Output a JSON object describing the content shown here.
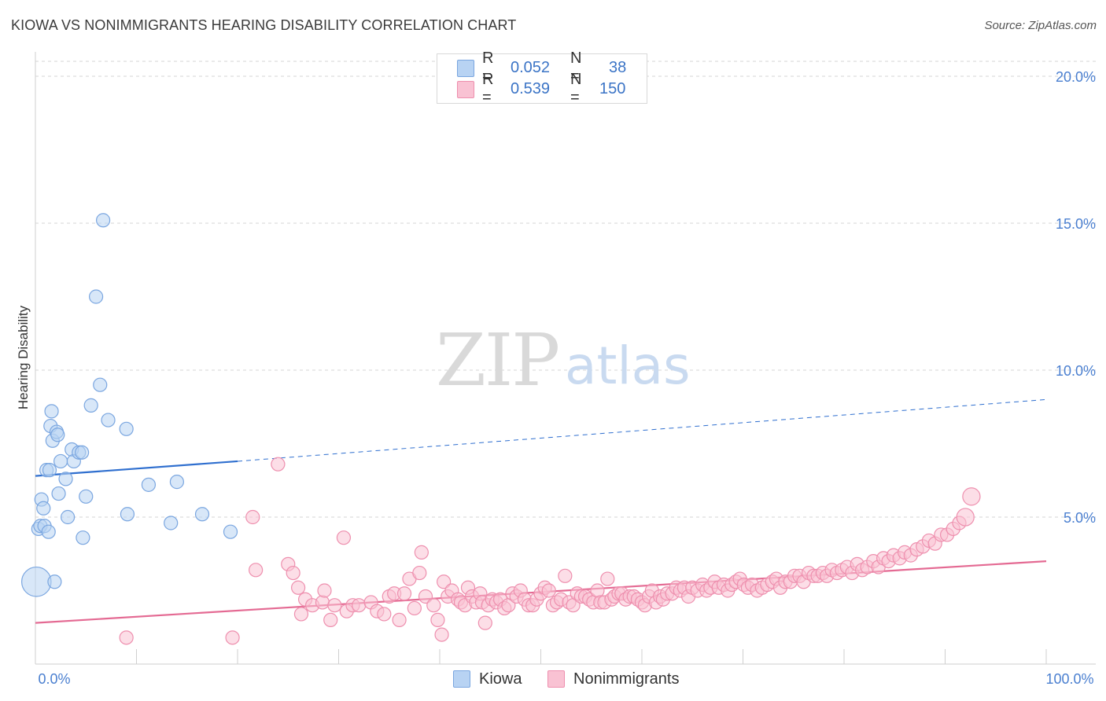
{
  "title": "KIOWA VS NONIMMIGRANTS HEARING DISABILITY CORRELATION CHART",
  "source": "Source: ZipAtlas.com",
  "watermark": {
    "zip": "ZIP",
    "atlas": "atlas"
  },
  "legend_top": {
    "rows": [
      {
        "r_label": "R =",
        "r_value": "0.052",
        "n_label": "N =",
        "n_value": "38"
      },
      {
        "r_label": "R =",
        "r_value": "0.539",
        "n_label": "N =",
        "n_value": "150"
      }
    ]
  },
  "legend_bottom": {
    "items": [
      "Kiowa",
      "Nonimmigrants"
    ]
  },
  "colors": {
    "kiowa_fill": "#b8d3f3",
    "kiowa_stroke": "#7aa6e0",
    "kiowa_line": "#2f6fcf",
    "non_fill": "#f9c2d3",
    "non_stroke": "#ee8fae",
    "non_line": "#e46a93",
    "tick": "#4a7fd0",
    "grid": "#d6d6d6"
  },
  "chart_data": {
    "type": "scatter",
    "title": "KIOWA VS NONIMMIGRANTS HEARING DISABILITY CORRELATION CHART",
    "xlabel": "",
    "ylabel": "Hearing Disability",
    "xlim": [
      0,
      100
    ],
    "ylim": [
      0,
      20
    ],
    "x_ticks": [
      "0.0%",
      "100.0%"
    ],
    "y_ticks": [
      {
        "value": 5,
        "label": "5.0%"
      },
      {
        "value": 10,
        "label": "10.0%"
      },
      {
        "value": 15,
        "label": "15.0%"
      },
      {
        "value": 20,
        "label": "20.0%"
      }
    ],
    "series": [
      {
        "name": "Kiowa",
        "R": 0.052,
        "N": 38,
        "trend": {
          "x0": 0,
          "y0": 6.4,
          "x1": 20,
          "y1": 6.9,
          "x_dash_end": 100,
          "y_dash_end": 9.0
        },
        "points": [
          [
            0.1,
            2.8,
            2.2
          ],
          [
            0.3,
            4.6,
            1
          ],
          [
            0.5,
            4.7,
            1
          ],
          [
            0.6,
            5.6,
            1
          ],
          [
            0.8,
            5.3,
            1
          ],
          [
            0.9,
            4.7,
            1
          ],
          [
            1.1,
            6.6,
            1
          ],
          [
            1.3,
            4.5,
            1
          ],
          [
            1.4,
            6.6,
            1
          ],
          [
            1.5,
            8.1,
            1
          ],
          [
            1.6,
            8.6,
            1
          ],
          [
            1.7,
            7.6,
            1
          ],
          [
            1.9,
            2.8,
            1
          ],
          [
            2.1,
            7.9,
            1
          ],
          [
            2.2,
            7.8,
            1
          ],
          [
            2.3,
            5.8,
            1
          ],
          [
            2.5,
            6.9,
            1
          ],
          [
            3.0,
            6.3,
            1
          ],
          [
            3.2,
            5.0,
            1
          ],
          [
            3.6,
            7.3,
            1
          ],
          [
            3.8,
            6.9,
            1
          ],
          [
            4.3,
            7.2,
            1
          ],
          [
            4.6,
            7.2,
            1
          ],
          [
            4.7,
            4.3,
            1
          ],
          [
            5.0,
            5.7,
            1
          ],
          [
            5.5,
            8.8,
            1
          ],
          [
            6.0,
            12.5,
            1
          ],
          [
            6.4,
            9.5,
            1
          ],
          [
            6.7,
            15.1,
            1
          ],
          [
            7.2,
            8.3,
            1
          ],
          [
            9.0,
            8.0,
            1
          ],
          [
            9.1,
            5.1,
            1
          ],
          [
            11.2,
            6.1,
            1
          ],
          [
            13.4,
            4.8,
            1
          ],
          [
            14.0,
            6.2,
            1
          ],
          [
            16.5,
            5.1,
            1
          ],
          [
            19.3,
            4.5,
            1
          ]
        ]
      },
      {
        "name": "Nonimmigrants",
        "R": 0.539,
        "N": 150,
        "trend": {
          "x0": 0,
          "y0": 1.4,
          "x1": 100,
          "y1": 3.5
        },
        "points": [
          [
            9.0,
            0.9,
            1
          ],
          [
            19.5,
            0.9,
            1
          ],
          [
            21.5,
            5.0,
            1
          ],
          [
            21.8,
            3.2,
            1
          ],
          [
            24.0,
            6.8,
            1
          ],
          [
            25.0,
            3.4,
            1
          ],
          [
            25.5,
            3.1,
            1
          ],
          [
            26.0,
            2.6,
            1
          ],
          [
            26.3,
            1.7,
            1
          ],
          [
            26.7,
            2.2,
            1
          ],
          [
            27.4,
            2.0,
            1
          ],
          [
            28.4,
            2.1,
            1
          ],
          [
            28.6,
            2.5,
            1
          ],
          [
            29.2,
            1.5,
            1
          ],
          [
            29.6,
            2.0,
            1
          ],
          [
            30.5,
            4.3,
            1
          ],
          [
            30.8,
            1.8,
            1
          ],
          [
            31.4,
            2.0,
            1
          ],
          [
            32.0,
            2.0,
            1
          ],
          [
            33.2,
            2.1,
            1
          ],
          [
            33.8,
            1.8,
            1
          ],
          [
            34.5,
            1.7,
            1
          ],
          [
            35.0,
            2.3,
            1
          ],
          [
            35.5,
            2.4,
            1
          ],
          [
            36.0,
            1.5,
            1
          ],
          [
            36.5,
            2.4,
            1
          ],
          [
            37.0,
            2.9,
            1
          ],
          [
            37.5,
            1.9,
            1
          ],
          [
            38.0,
            3.1,
            1
          ],
          [
            38.2,
            3.8,
            1
          ],
          [
            38.6,
            2.3,
            1
          ],
          [
            39.4,
            2.0,
            1
          ],
          [
            39.8,
            1.5,
            1
          ],
          [
            40.2,
            1.0,
            1
          ],
          [
            40.4,
            2.8,
            1
          ],
          [
            40.8,
            2.3,
            1
          ],
          [
            41.2,
            2.5,
            1
          ],
          [
            41.8,
            2.2,
            1
          ],
          [
            42.1,
            2.1,
            1
          ],
          [
            42.5,
            2.0,
            1
          ],
          [
            42.8,
            2.6,
            1
          ],
          [
            43.2,
            2.3,
            1
          ],
          [
            43.6,
            2.1,
            1
          ],
          [
            44.0,
            2.4,
            1
          ],
          [
            44.2,
            2.1,
            1
          ],
          [
            44.5,
            1.4,
            1
          ],
          [
            44.8,
            2.0,
            1
          ],
          [
            45.2,
            2.2,
            1
          ],
          [
            45.6,
            2.1,
            1
          ],
          [
            46.0,
            2.2,
            1
          ],
          [
            46.4,
            1.9,
            1
          ],
          [
            46.8,
            2.0,
            1
          ],
          [
            47.2,
            2.4,
            1
          ],
          [
            47.6,
            2.3,
            1
          ],
          [
            48.0,
            2.5,
            1
          ],
          [
            48.4,
            2.2,
            1
          ],
          [
            48.8,
            2.0,
            1
          ],
          [
            49.2,
            2.0,
            1
          ],
          [
            49.6,
            2.2,
            1
          ],
          [
            50.0,
            2.4,
            1
          ],
          [
            50.4,
            2.6,
            1
          ],
          [
            50.8,
            2.5,
            1
          ],
          [
            51.2,
            2.0,
            1
          ],
          [
            51.6,
            2.1,
            1
          ],
          [
            52.0,
            2.2,
            1
          ],
          [
            52.4,
            3.0,
            1
          ],
          [
            52.8,
            2.1,
            1
          ],
          [
            53.2,
            2.0,
            1
          ],
          [
            53.6,
            2.4,
            1
          ],
          [
            54.0,
            2.3,
            1
          ],
          [
            54.4,
            2.3,
            1
          ],
          [
            54.8,
            2.2,
            1
          ],
          [
            55.2,
            2.1,
            1
          ],
          [
            55.6,
            2.5,
            1
          ],
          [
            55.9,
            2.1,
            1
          ],
          [
            56.3,
            2.1,
            1
          ],
          [
            56.6,
            2.9,
            1
          ],
          [
            57.0,
            2.2,
            1
          ],
          [
            57.3,
            2.3,
            1
          ],
          [
            57.7,
            2.4,
            1
          ],
          [
            58.0,
            2.4,
            1
          ],
          [
            58.4,
            2.2,
            1
          ],
          [
            58.8,
            2.3,
            1
          ],
          [
            59.2,
            2.3,
            1
          ],
          [
            59.6,
            2.2,
            1
          ],
          [
            60.0,
            2.1,
            1
          ],
          [
            60.3,
            2.0,
            1
          ],
          [
            60.7,
            2.3,
            1
          ],
          [
            61.0,
            2.5,
            1
          ],
          [
            61.4,
            2.1,
            1
          ],
          [
            61.8,
            2.3,
            1
          ],
          [
            62.1,
            2.2,
            1
          ],
          [
            62.5,
            2.4,
            1
          ],
          [
            63.0,
            2.4,
            1
          ],
          [
            63.4,
            2.6,
            1
          ],
          [
            63.8,
            2.5,
            1
          ],
          [
            64.2,
            2.6,
            1
          ],
          [
            64.6,
            2.3,
            1
          ],
          [
            65.0,
            2.6,
            1
          ],
          [
            65.5,
            2.5,
            1
          ],
          [
            66.0,
            2.7,
            1
          ],
          [
            66.4,
            2.5,
            1
          ],
          [
            66.8,
            2.6,
            1
          ],
          [
            67.2,
            2.8,
            1
          ],
          [
            67.6,
            2.6,
            1
          ],
          [
            68.1,
            2.7,
            1
          ],
          [
            68.5,
            2.5,
            1
          ],
          [
            68.9,
            2.7,
            1
          ],
          [
            69.3,
            2.8,
            1
          ],
          [
            69.7,
            2.9,
            1
          ],
          [
            70.1,
            2.7,
            1
          ],
          [
            70.5,
            2.6,
            1
          ],
          [
            70.9,
            2.7,
            1
          ],
          [
            71.4,
            2.5,
            1
          ],
          [
            71.9,
            2.6,
            1
          ],
          [
            72.4,
            2.7,
            1
          ],
          [
            72.9,
            2.8,
            1
          ],
          [
            73.3,
            2.9,
            1
          ],
          [
            73.7,
            2.6,
            1
          ],
          [
            74.2,
            2.8,
            1
          ],
          [
            74.7,
            2.8,
            1
          ],
          [
            75.1,
            3.0,
            1
          ],
          [
            75.6,
            3.0,
            1
          ],
          [
            76.0,
            2.8,
            1
          ],
          [
            76.5,
            3.1,
            1
          ],
          [
            77.0,
            3.0,
            1
          ],
          [
            77.4,
            3.0,
            1
          ],
          [
            77.9,
            3.1,
            1
          ],
          [
            78.3,
            3.0,
            1
          ],
          [
            78.8,
            3.2,
            1
          ],
          [
            79.3,
            3.1,
            1
          ],
          [
            79.8,
            3.2,
            1
          ],
          [
            80.3,
            3.3,
            1
          ],
          [
            80.8,
            3.1,
            1
          ],
          [
            81.3,
            3.4,
            1
          ],
          [
            81.8,
            3.2,
            1
          ],
          [
            82.3,
            3.3,
            1
          ],
          [
            82.9,
            3.5,
            1
          ],
          [
            83.4,
            3.3,
            1
          ],
          [
            83.9,
            3.6,
            1
          ],
          [
            84.4,
            3.5,
            1
          ],
          [
            84.9,
            3.7,
            1
          ],
          [
            85.5,
            3.6,
            1
          ],
          [
            86.0,
            3.8,
            1
          ],
          [
            86.6,
            3.7,
            1
          ],
          [
            87.2,
            3.9,
            1
          ],
          [
            87.8,
            4.0,
            1
          ],
          [
            88.4,
            4.2,
            1
          ],
          [
            89.0,
            4.1,
            1
          ],
          [
            89.6,
            4.4,
            1
          ],
          [
            90.2,
            4.4,
            1
          ],
          [
            90.8,
            4.6,
            1
          ],
          [
            91.4,
            4.8,
            1
          ],
          [
            92.0,
            5.0,
            1.3
          ],
          [
            92.6,
            5.7,
            1.3
          ]
        ]
      }
    ]
  }
}
